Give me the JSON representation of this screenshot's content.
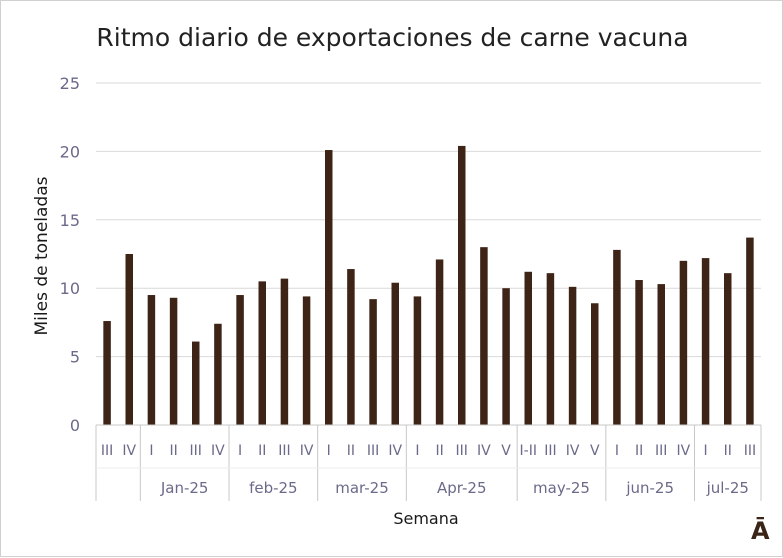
{
  "chart_data": {
    "type": "bar",
    "title": "Ritmo diario de exportaciones de carne vacuna",
    "xlabel": "Semana",
    "ylabel": "Miles de toneladas",
    "ylim": [
      0,
      25
    ],
    "yticks": [
      0,
      5,
      10,
      15,
      20,
      25
    ],
    "grid": true,
    "legend": "none",
    "bar_color": "#3d2416",
    "groups": [
      {
        "label": "",
        "weeks": [
          "III",
          "IV"
        ],
        "values": [
          7.6,
          12.5
        ]
      },
      {
        "label": "Jan-25",
        "weeks": [
          "I",
          "II",
          "III",
          "IV"
        ],
        "values": [
          9.5,
          9.3,
          6.1,
          7.4
        ]
      },
      {
        "label": "feb-25",
        "weeks": [
          "I",
          "II",
          "III",
          "IV"
        ],
        "values": [
          9.5,
          10.5,
          10.7,
          9.4
        ]
      },
      {
        "label": "mar-25",
        "weeks": [
          "I",
          "II",
          "III",
          "IV"
        ],
        "values": [
          20.1,
          11.4,
          9.2,
          10.4
        ]
      },
      {
        "label": "Apr-25",
        "weeks": [
          "I",
          "II",
          "III",
          "IV",
          "V"
        ],
        "values": [
          9.4,
          12.1,
          20.4,
          13.0,
          10.0
        ]
      },
      {
        "label": "may-25",
        "weeks": [
          "I-II",
          "III",
          "IV",
          "V"
        ],
        "values": [
          11.2,
          11.1,
          10.1,
          8.9
        ]
      },
      {
        "label": "jun-25",
        "weeks": [
          "I",
          "II",
          "III",
          "IV"
        ],
        "values": [
          12.8,
          10.6,
          10.3,
          12.0
        ]
      },
      {
        "label": "jul-25",
        "weeks": [
          "I",
          "II",
          "III"
        ],
        "values": [
          12.2,
          11.1,
          13.7
        ]
      }
    ]
  },
  "logo_text": "Ā"
}
